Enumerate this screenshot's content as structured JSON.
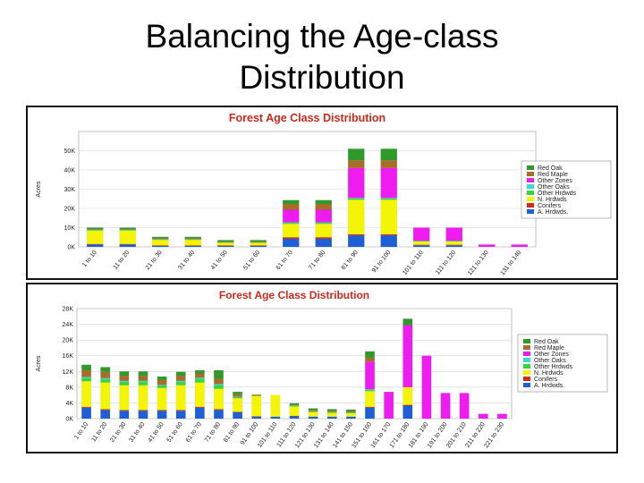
{
  "slide": {
    "title_line1": "Balancing the Age-class",
    "title_line2": "Distribution"
  },
  "colors": {
    "A. Hrdwds.": "#1f5fd6",
    "Conifers": "#d42a1e",
    "N. Hrdwds": "#f4f407",
    "Other Hrdwds": "#33d63b",
    "Other Oaks": "#3cd8d6",
    "Other Zones": "#ee1cee",
    "Red Maple": "#a86e28",
    "Red Oak": "#2f9a2a",
    "title": "#cc2a1c"
  },
  "chart_data": [
    {
      "type": "bar",
      "stacked": true,
      "title": "Forest Age Class Distribution",
      "ylabel": "Acres",
      "ylim": [
        0,
        60000
      ],
      "yticks": [
        "0K",
        "10K",
        "20K",
        "30K",
        "40K",
        "50K"
      ],
      "ytick_values": [
        0,
        10000,
        20000,
        30000,
        40000,
        50000
      ],
      "grid": true,
      "legend_position": "right",
      "legend": [
        "Red Oak",
        "Red Maple",
        "Other Zones",
        "Other Oaks",
        "Other Hrdwds",
        "N. Hrdwds",
        "Conifers",
        "A. Hrdwds."
      ],
      "categories": [
        "1 to 10",
        "11 to 20",
        "21 to 30",
        "31 to 40",
        "41 to 50",
        "51 to 60",
        "61 to 70",
        "71 to 80",
        "81 to 90",
        "91 to 100",
        "101 to 110",
        "111 to 120",
        "121 to 130",
        "131 to 140"
      ],
      "series": [
        {
          "name": "A. Hrdwds.",
          "values": [
            1200,
            1200,
            500,
            500,
            500,
            500,
            4200,
            4200,
            6000,
            6000,
            800,
            800,
            0,
            0
          ]
        },
        {
          "name": "Conifers",
          "values": [
            300,
            300,
            200,
            200,
            200,
            200,
            800,
            800,
            500,
            500,
            300,
            300,
            0,
            0
          ]
        },
        {
          "name": "N. Hrdwds",
          "values": [
            7000,
            7000,
            3000,
            3000,
            1500,
            1500,
            7000,
            7000,
            18000,
            18000,
            1800,
            1800,
            0,
            0
          ]
        },
        {
          "name": "Other Hrdwds",
          "values": [
            300,
            300,
            200,
            200,
            200,
            200,
            500,
            500,
            600,
            600,
            200,
            200,
            0,
            0
          ]
        },
        {
          "name": "Other Oaks",
          "values": [
            200,
            200,
            100,
            100,
            100,
            100,
            300,
            300,
            400,
            400,
            100,
            100,
            0,
            0
          ]
        },
        {
          "name": "Other Zones",
          "values": [
            0,
            0,
            0,
            0,
            0,
            0,
            6500,
            6500,
            15500,
            15500,
            6800,
            6800,
            1200,
            1200
          ]
        },
        {
          "name": "Red Maple",
          "values": [
            300,
            300,
            500,
            500,
            300,
            300,
            3000,
            3000,
            4000,
            4000,
            0,
            0,
            0,
            0
          ]
        },
        {
          "name": "Red Oak",
          "values": [
            700,
            700,
            700,
            700,
            700,
            700,
            2000,
            2000,
            6000,
            6000,
            0,
            0,
            0,
            0
          ]
        }
      ]
    },
    {
      "type": "bar",
      "stacked": true,
      "title": "Forest Age Class Distribution",
      "ylabel": "Acres",
      "ylim": [
        0,
        28000
      ],
      "yticks": [
        "0K",
        "4K",
        "8K",
        "12K",
        "16K",
        "20K",
        "24K",
        "28K"
      ],
      "ytick_values": [
        0,
        4000,
        8000,
        12000,
        16000,
        20000,
        24000,
        28000
      ],
      "grid": true,
      "legend_position": "right",
      "legend": [
        "Red Oak",
        "Red Maple",
        "Other Zones",
        "Other Oaks",
        "Other Hrdwds",
        "N. Hrdwds",
        "Conifers",
        "A. Hrdwds."
      ],
      "categories": [
        "1 to 10",
        "11 to 20",
        "21 to 30",
        "31 to 40",
        "41 to 50",
        "51 to 60",
        "61 to 70",
        "71 to 80",
        "81 to 90",
        "91 to 100",
        "101 to 110",
        "111 to 120",
        "121 to 130",
        "131 to 140",
        "141 to 150",
        "151 to 160",
        "161 to 170",
        "171 to 180",
        "181 to 190",
        "191 to 200",
        "201 to 210",
        "211 to 220",
        "221 to 230"
      ],
      "series": [
        {
          "name": "A. Hrdwds.",
          "values": [
            2800,
            2200,
            2000,
            2000,
            2000,
            2000,
            2800,
            2200,
            1600,
            500,
            500,
            600,
            500,
            500,
            500,
            2800,
            0,
            3300,
            0,
            0,
            0,
            0,
            0
          ]
        },
        {
          "name": "Conifers",
          "values": [
            200,
            200,
            200,
            200,
            200,
            200,
            200,
            200,
            100,
            100,
            0,
            100,
            0,
            0,
            0,
            200,
            0,
            200,
            0,
            0,
            0,
            0,
            0
          ]
        },
        {
          "name": "N. Hrdwds",
          "values": [
            6500,
            6800,
            6300,
            6300,
            5600,
            6300,
            6200,
            5200,
            3500,
            5200,
            5500,
            2400,
            1200,
            1000,
            900,
            4000,
            0,
            4500,
            0,
            0,
            0,
            0,
            0
          ]
        },
        {
          "name": "Other Hrdwds",
          "values": [
            800,
            800,
            800,
            800,
            600,
            800,
            900,
            900,
            300,
            0,
            0,
            200,
            100,
            100,
            100,
            300,
            0,
            0,
            0,
            0,
            0,
            0,
            0
          ]
        },
        {
          "name": "Other Oaks",
          "values": [
            300,
            300,
            300,
            300,
            200,
            300,
            300,
            300,
            100,
            0,
            0,
            100,
            100,
            100,
            100,
            200,
            0,
            0,
            0,
            0,
            0,
            0,
            0
          ]
        },
        {
          "name": "Other Zones",
          "values": [
            0,
            0,
            0,
            0,
            0,
            0,
            0,
            0,
            0,
            0,
            0,
            0,
            0,
            0,
            0,
            7000,
            6800,
            15800,
            16000,
            6500,
            6500,
            1200,
            1200
          ]
        },
        {
          "name": "Red Maple",
          "values": [
            1700,
            1600,
            1300,
            1300,
            1200,
            1300,
            1100,
            1300,
            600,
            200,
            0,
            200,
            300,
            300,
            300,
            1000,
            0,
            0,
            0,
            0,
            0,
            0,
            0
          ]
        },
        {
          "name": "Red Oak",
          "values": [
            1400,
            1200,
            1100,
            1100,
            900,
            1000,
            800,
            2200,
            600,
            100,
            0,
            300,
            400,
            400,
            400,
            1600,
            0,
            1600,
            0,
            0,
            0,
            0,
            0
          ]
        }
      ]
    }
  ]
}
